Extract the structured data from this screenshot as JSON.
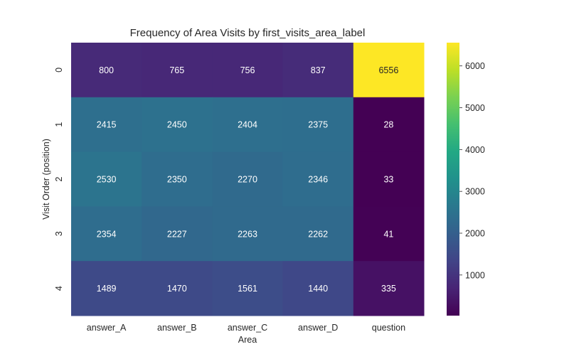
{
  "chart_data": {
    "type": "heatmap",
    "title": "Frequency of Area Visits by first_visits_area_label",
    "xlabel": "Area",
    "ylabel": "Visit Order (position)",
    "x_categories": [
      "answer_A",
      "answer_B",
      "answer_C",
      "answer_D",
      "question"
    ],
    "y_categories": [
      "0",
      "1",
      "2",
      "3",
      "4"
    ],
    "values": [
      [
        800,
        765,
        756,
        837,
        6556
      ],
      [
        2415,
        2450,
        2404,
        2375,
        28
      ],
      [
        2530,
        2350,
        2270,
        2346,
        33
      ],
      [
        2354,
        2227,
        2263,
        2262,
        41
      ],
      [
        1489,
        1470,
        1561,
        1440,
        335
      ]
    ],
    "colormap": "viridis",
    "vmin": 28,
    "vmax": 6556,
    "colorbar_ticks": [
      1000,
      2000,
      3000,
      4000,
      5000,
      6000
    ],
    "annotate": true,
    "grid": false
  }
}
